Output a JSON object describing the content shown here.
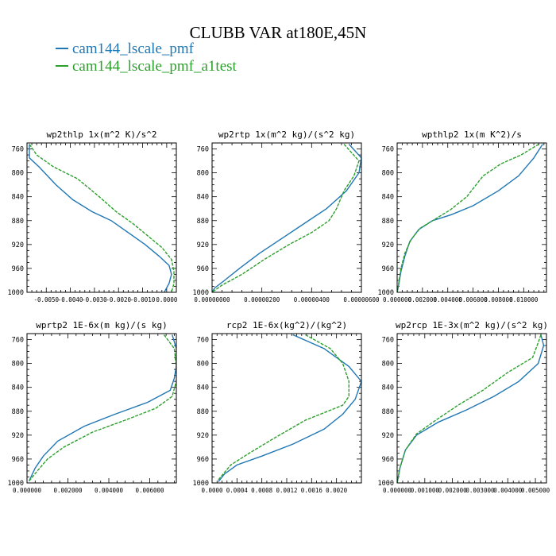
{
  "title": "CLUBB VAR at180E,45N",
  "legend": [
    {
      "name": "cam144_lscale_pmf",
      "color": "#1f77b4"
    },
    {
      "name": "cam144_lscale_pmf_a1test",
      "color": "#2ca02c"
    }
  ],
  "chart_data": [
    {
      "type": "line",
      "title": "wp2thlp  1x(m^2 K)/s^2",
      "ylim": [
        1000,
        750
      ],
      "xlim": [
        -0.0058,
        0.0004
      ],
      "yticks": [
        760,
        800,
        840,
        880,
        920,
        960,
        1000
      ],
      "xticks": [
        -0.005,
        -0.004,
        -0.003,
        -0.002,
        -0.001,
        0.0
      ],
      "xtick_labels": [
        "-0.0050",
        "-0.0040",
        "-0.0030",
        "-0.0020",
        "-0.0010",
        "0.0000"
      ],
      "series": [
        {
          "color": "#1f77b4",
          "x": [
            -0.0057,
            -0.0057,
            -0.0053,
            -0.0046,
            -0.0039,
            -0.0031,
            -0.0023,
            -0.0016,
            -0.0009,
            -0.0003,
            0.0001,
            0.0002,
            0.0001,
            -0.0001
          ],
          "y": [
            752,
            775,
            790,
            820,
            845,
            865,
            880,
            900,
            920,
            940,
            955,
            970,
            985,
            1000
          ]
        },
        {
          "color": "#2ca02c",
          "x": [
            -0.0057,
            -0.0054,
            -0.0047,
            -0.0037,
            -0.0028,
            -0.0021,
            -0.0014,
            -0.0008,
            -0.0002,
            0.0002,
            0.0003,
            0.0003,
            0.0002
          ],
          "y": [
            752,
            770,
            790,
            810,
            840,
            865,
            885,
            905,
            925,
            945,
            965,
            985,
            1000
          ]
        }
      ]
    },
    {
      "type": "line",
      "title": "wp2rtp  1x(m^2 kg)/(s^2 kg)",
      "ylim": [
        1000,
        750
      ],
      "xlim": [
        0.0,
        6e-06
      ],
      "yticks": [
        760,
        800,
        840,
        880,
        920,
        960,
        1000
      ],
      "xticks": [
        0.0,
        2e-06,
        4e-06,
        6e-06
      ],
      "xtick_labels": [
        "0.00000000",
        "0.00000200",
        "0.00000400",
        "0.00000600"
      ],
      "series": [
        {
          "color": "#1f77b4",
          "x": [
            5.5e-06,
            6e-06,
            5.9e-06,
            5.4e-06,
            4.6e-06,
            3.7e-06,
            2.8e-06,
            1.9e-06,
            1.1e-06,
            5e-07,
            1e-07,
            0.0
          ],
          "y": [
            752,
            775,
            800,
            830,
            860,
            885,
            910,
            935,
            960,
            980,
            993,
            1000
          ]
        },
        {
          "color": "#2ca02c",
          "x": [
            5.3e-06,
            5.9e-06,
            5.7e-06,
            5.3e-06,
            5e-06,
            4.7e-06,
            4e-06,
            3.1e-06,
            2.1e-06,
            1.2e-06,
            4e-07,
            1e-07,
            0.0
          ],
          "y": [
            752,
            780,
            805,
            830,
            860,
            880,
            900,
            920,
            945,
            970,
            988,
            997,
            1000
          ]
        }
      ]
    },
    {
      "type": "line",
      "title": "wpthlp2  1x(m K^2)/s",
      "ylim": [
        1000,
        750
      ],
      "xlim": [
        0.0,
        0.0118
      ],
      "yticks": [
        760,
        800,
        840,
        880,
        920,
        960,
        1000
      ],
      "xticks": [
        0.0,
        0.002,
        0.004,
        0.006,
        0.008,
        0.01
      ],
      "xtick_labels": [
        "0.000000",
        "0.002000",
        "0.004000",
        "0.006000",
        "0.008000",
        "0.010000"
      ],
      "series": [
        {
          "color": "#1f77b4",
          "x": [
            0.0115,
            0.0108,
            0.0096,
            0.008,
            0.006,
            0.0043,
            0.0028,
            0.0017,
            0.001,
            0.0006,
            0.0003,
            0.0001,
            0.0
          ],
          "y": [
            752,
            775,
            805,
            830,
            855,
            870,
            880,
            895,
            915,
            940,
            965,
            990,
            1000
          ]
        },
        {
          "color": "#2ca02c",
          "x": [
            0.0112,
            0.0098,
            0.0082,
            0.0068,
            0.0055,
            0.0042,
            0.0028,
            0.0018,
            0.0011,
            0.0006,
            0.0003,
            0.0001,
            0.0
          ],
          "y": [
            752,
            770,
            785,
            805,
            840,
            862,
            880,
            893,
            912,
            935,
            960,
            988,
            1000
          ]
        }
      ]
    },
    {
      "type": "line",
      "title": "wprtp2  1E-6x(m kg)/(s kg)",
      "ylim": [
        1000,
        750
      ],
      "xlim": [
        0.0,
        0.0073
      ],
      "yticks": [
        760,
        800,
        840,
        880,
        920,
        960,
        1000
      ],
      "xticks": [
        0.0,
        0.002,
        0.004,
        0.006
      ],
      "xtick_labels": [
        "0.000000",
        "0.002000",
        "0.004000",
        "0.006000"
      ],
      "series": [
        {
          "color": "#1f77b4",
          "x": [
            0.0071,
            0.0073,
            0.0073,
            0.0072,
            0.007,
            0.0059,
            0.0043,
            0.0028,
            0.0015,
            0.0008,
            0.0004,
            0.0001
          ],
          "y": [
            752,
            775,
            805,
            825,
            845,
            865,
            885,
            905,
            930,
            955,
            975,
            997
          ]
        },
        {
          "color": "#2ca02c",
          "x": [
            0.0067,
            0.0072,
            0.0073,
            0.0073,
            0.0071,
            0.0063,
            0.0048,
            0.0032,
            0.0018,
            0.001,
            0.0005,
            0.0001
          ],
          "y": [
            752,
            775,
            805,
            830,
            855,
            875,
            895,
            915,
            940,
            960,
            980,
            997
          ]
        }
      ]
    },
    {
      "type": "line",
      "title": "rcp2  1E-6x(kg^2)/(kg^2)",
      "ylim": [
        1000,
        750
      ],
      "xlim": [
        0.0,
        0.0024
      ],
      "yticks": [
        760,
        800,
        840,
        880,
        920,
        960,
        1000
      ],
      "xticks": [
        0.0,
        0.0004,
        0.0008,
        0.0012,
        0.0016,
        0.002
      ],
      "xtick_labels": [
        "0.0000",
        "0.0004",
        "0.0008",
        "0.0012",
        "0.0016",
        "0.0020"
      ],
      "series": [
        {
          "color": "#1f77b4",
          "x": [
            0.0013,
            0.0018,
            0.0022,
            0.0024,
            0.0023,
            0.0021,
            0.0018,
            0.0013,
            0.0008,
            0.0004,
            0.0002,
            0.0001
          ],
          "y": [
            752,
            775,
            805,
            830,
            860,
            885,
            910,
            935,
            955,
            970,
            985,
            998
          ]
        },
        {
          "color": "#2ca02c",
          "x": [
            0.0015,
            0.0019,
            0.0021,
            0.0022,
            0.0022,
            0.0021,
            0.0015,
            0.001,
            0.0006,
            0.0003,
            0.0001
          ],
          "y": [
            752,
            775,
            800,
            830,
            855,
            870,
            895,
            925,
            950,
            970,
            995
          ]
        }
      ]
    },
    {
      "type": "line",
      "title": "wp2rcp  1E-3x(m^2 kg)/(s^2 kg)",
      "ylim": [
        1000,
        750
      ],
      "xlim": [
        0.0,
        0.0054
      ],
      "yticks": [
        760,
        800,
        840,
        880,
        920,
        960,
        1000
      ],
      "xticks": [
        0.0,
        0.001,
        0.002,
        0.003,
        0.004,
        0.005
      ],
      "xtick_labels": [
        "0.000000",
        "0.001000",
        "0.002000",
        "0.003000",
        "0.004000",
        "0.005000"
      ],
      "series": [
        {
          "color": "#1f77b4",
          "x": [
            0.0052,
            0.0053,
            0.0051,
            0.0044,
            0.0035,
            0.0025,
            0.0015,
            0.0007,
            0.0003,
            0.0001,
            0.0
          ],
          "y": [
            752,
            770,
            800,
            830,
            855,
            878,
            898,
            920,
            945,
            975,
            1000
          ]
        },
        {
          "color": "#2ca02c",
          "x": [
            0.0052,
            0.0051,
            0.0049,
            0.004,
            0.0031,
            0.0022,
            0.0014,
            0.0007,
            0.0003,
            0.0001,
            0.0
          ],
          "y": [
            752,
            765,
            790,
            815,
            845,
            870,
            895,
            918,
            945,
            975,
            1000
          ]
        }
      ]
    }
  ]
}
